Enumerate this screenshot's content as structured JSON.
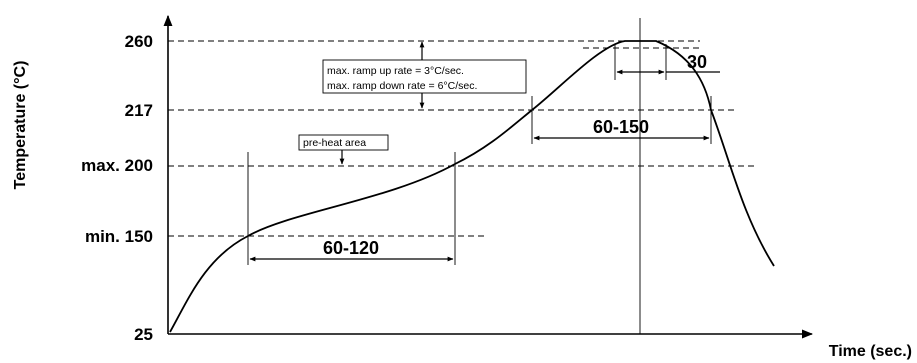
{
  "chart_data": {
    "type": "line",
    "title": "",
    "xlabel": "Time (sec.)",
    "ylabel": "Temperature (°C)",
    "y_ticks": [
      {
        "value": 25,
        "label": "25"
      },
      {
        "value": 150,
        "label": "min. 150"
      },
      {
        "value": 200,
        "label": "max. 200"
      },
      {
        "value": 217,
        "label": "217"
      },
      {
        "value": 260,
        "label": "260"
      }
    ],
    "grid": false,
    "series": [
      {
        "y": [
          25,
          95,
          150,
          168,
          180,
          200,
          217,
          240,
          260,
          260,
          217,
          150,
          95
        ]
      }
    ],
    "annotations": {
      "preheat_label": "pre-heat area",
      "ramp_up": "max. ramp up rate = 3°C/sec.",
      "ramp_down": "max. ramp down rate = 6°C/sec.",
      "preheat_duration": "60-120",
      "above_liquidus_duration": "60-150",
      "peak_duration": "30"
    }
  }
}
